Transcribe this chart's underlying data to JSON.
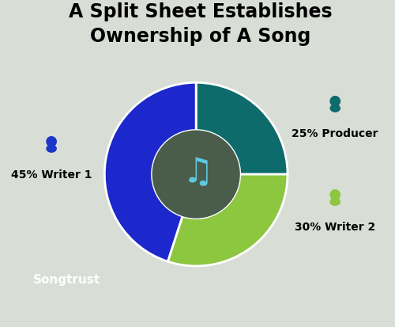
{
  "title": "A Split Sheet Establishes\nOwnership of A Song",
  "title_fontsize": 17,
  "segments": [
    {
      "label": "25% Producer",
      "value": 25,
      "color": "#0d6b6b",
      "icon_color": "#0d6b6b"
    },
    {
      "label": "30% Writer 2",
      "value": 30,
      "color": "#8dc63f",
      "icon_color": "#8dc63f"
    },
    {
      "label": "45% Writer 1",
      "value": 45,
      "color": "#1c28cc",
      "icon_color": "#1c35c8"
    }
  ],
  "background_color": "#d8ddd6",
  "center_circle_color": "#4a5c4a",
  "music_note_color": "#5ec8e0",
  "songtrust_text": "Songtrust",
  "songtrust_color": "#ffffff"
}
